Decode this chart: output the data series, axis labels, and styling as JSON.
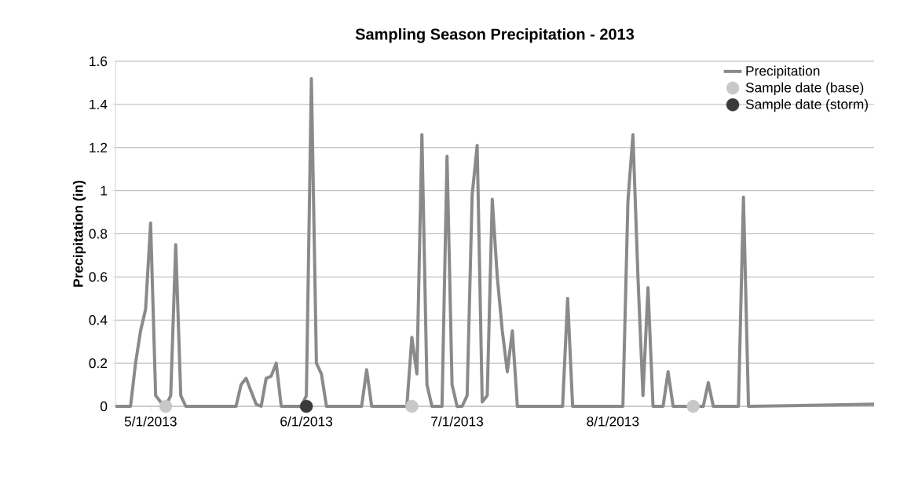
{
  "chart_data": {
    "type": "line",
    "title": "Sampling Season Precipitation - 2013",
    "ylabel": "Precipitation (in)",
    "xlim": [
      "2013-04-24",
      "2013-09-22"
    ],
    "xticks": [
      {
        "value": "2013-05-01",
        "label": "5/1/2013"
      },
      {
        "value": "2013-06-01",
        "label": "6/1/2013"
      },
      {
        "value": "2013-07-01",
        "label": "7/1/2013"
      },
      {
        "value": "2013-08-01",
        "label": "8/1/2013"
      }
    ],
    "ylim": [
      0,
      1.6
    ],
    "yticks": [
      0,
      0.2,
      0.4,
      0.6,
      0.8,
      1,
      1.2,
      1.4,
      1.6
    ],
    "grid": "y",
    "legend": "top right",
    "series": [
      {
        "name": "Precipitation",
        "color": "#8a8a8a",
        "marker": "none",
        "x": [
          "2013-04-24",
          "2013-04-27",
          "2013-04-28",
          "2013-04-29",
          "2013-04-30",
          "2013-05-01",
          "2013-05-02",
          "2013-05-03",
          "2013-05-04",
          "2013-05-05",
          "2013-05-06",
          "2013-05-07",
          "2013-05-08",
          "2013-05-18",
          "2013-05-19",
          "2013-05-20",
          "2013-05-21",
          "2013-05-22",
          "2013-05-23",
          "2013-05-24",
          "2013-05-25",
          "2013-05-26",
          "2013-05-27",
          "2013-05-31",
          "2013-06-01",
          "2013-06-02",
          "2013-06-03",
          "2013-06-04",
          "2013-06-05",
          "2013-06-12",
          "2013-06-13",
          "2013-06-14",
          "2013-06-21",
          "2013-06-22",
          "2013-06-23",
          "2013-06-24",
          "2013-06-25",
          "2013-06-26",
          "2013-06-28",
          "2013-06-29",
          "2013-06-30",
          "2013-07-01",
          "2013-07-02",
          "2013-07-03",
          "2013-07-04",
          "2013-07-05",
          "2013-07-06",
          "2013-07-07",
          "2013-07-08",
          "2013-07-09",
          "2013-07-10",
          "2013-07-11",
          "2013-07-12",
          "2013-07-13",
          "2013-07-22",
          "2013-07-23",
          "2013-07-24",
          "2013-08-03",
          "2013-08-04",
          "2013-08-05",
          "2013-08-06",
          "2013-08-07",
          "2013-08-08",
          "2013-08-09",
          "2013-08-11",
          "2013-08-12",
          "2013-08-13",
          "2013-08-19",
          "2013-08-20",
          "2013-08-21",
          "2013-08-26",
          "2013-08-27",
          "2013-08-28",
          "2013-09-22"
        ],
        "values": [
          0,
          0,
          0.2,
          0.35,
          0.45,
          0.85,
          0.05,
          0.02,
          0,
          0.05,
          0.75,
          0.05,
          0,
          0,
          0.1,
          0.13,
          0.07,
          0.01,
          0,
          0.13,
          0.14,
          0.2,
          0,
          0,
          0.05,
          1.52,
          0.2,
          0.15,
          0,
          0,
          0.17,
          0,
          0,
          0.32,
          0.15,
          1.26,
          0.1,
          0,
          0,
          1.16,
          0.1,
          0,
          0,
          0.05,
          0.98,
          1.21,
          0.02,
          0.05,
          0.96,
          0.6,
          0.35,
          0.16,
          0.35,
          0,
          0,
          0.5,
          0,
          0,
          0.95,
          1.26,
          0.6,
          0.05,
          0.55,
          0,
          0,
          0.16,
          0,
          0,
          0.11,
          0,
          0,
          0.97,
          0,
          0.01
        ]
      },
      {
        "name": "Sample date (base)",
        "type": "scatter",
        "color": "#c8c8c8",
        "marker": "circle",
        "x": [
          "2013-05-04",
          "2013-06-22",
          "2013-08-17"
        ],
        "values": [
          0,
          0,
          0
        ]
      },
      {
        "name": "Sample date (storm)",
        "type": "scatter",
        "color": "#3a3a3a",
        "marker": "circle",
        "x": [
          "2013-06-01"
        ],
        "values": [
          0
        ]
      }
    ]
  }
}
